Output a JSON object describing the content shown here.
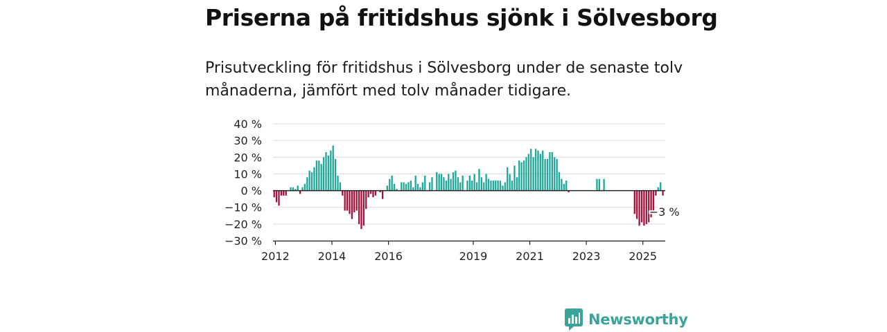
{
  "title": "Priserna på fritidshus sjönk i Sölvesborg",
  "subtitle": "Prisutveckling för fritidshus i Sölvesborg under de senaste tolv månaderna, jämfört med tolv månader tidigare.",
  "brand": {
    "name": "Newsworthy",
    "icon": "newsworthy-logo-icon"
  },
  "colors": {
    "positive": "#1fa79a",
    "negative": "#a6123e",
    "grid": "#d9d9d9",
    "zero_line": "#222222"
  },
  "chart_data": {
    "type": "bar",
    "y_unit": "%",
    "ylim": [
      -30,
      40
    ],
    "y_ticks": [
      40,
      30,
      20,
      10,
      0,
      -10,
      -20,
      -30
    ],
    "y_tick_labels": [
      "40 %",
      "30 %",
      "20 %",
      "10 %",
      "0 %",
      "−10 %",
      "−20 %",
      "−30 %"
    ],
    "x_ticks": [
      2012,
      2014,
      2016,
      2019,
      2021,
      2023,
      2025
    ],
    "grid": true,
    "last_value_label": "−3 %",
    "series": [
      {
        "start": "2011-12",
        "frequency": "monthly",
        "values": [
          -4,
          -7,
          -9,
          -3,
          -3,
          -3,
          null,
          2,
          2,
          1,
          3,
          -2,
          2,
          4,
          8,
          12,
          11,
          14,
          18,
          18,
          16,
          20,
          23,
          21,
          24,
          27,
          19,
          9,
          5,
          -3,
          -12,
          -12,
          -14,
          -17,
          -13,
          -12,
          -20,
          -23,
          -21,
          -11,
          -4,
          -2,
          -4,
          -3,
          null,
          -1,
          -5,
          null,
          3,
          7,
          9,
          4,
          1,
          null,
          5,
          5,
          4,
          5,
          6,
          2,
          9,
          4,
          2,
          5,
          9,
          null,
          5,
          8,
          null,
          11,
          10,
          10,
          8,
          6,
          10,
          7,
          11,
          12,
          8,
          5,
          9,
          null,
          6,
          9,
          6,
          10,
          5,
          13,
          8,
          5,
          10,
          7,
          6,
          6,
          6,
          6,
          6,
          3,
          5,
          14,
          10,
          6,
          15,
          8,
          18,
          17,
          18,
          20,
          22,
          25,
          20,
          25,
          24,
          22,
          24,
          19,
          19,
          23,
          23,
          20,
          19,
          11,
          7,
          4,
          6,
          -1,
          null,
          null,
          null,
          null,
          null,
          null,
          null,
          null,
          null,
          null,
          null,
          7,
          7,
          null,
          7,
          null,
          null,
          null,
          null,
          null,
          null,
          null,
          null,
          null,
          null,
          null,
          null,
          -14,
          -17,
          -21,
          -19,
          -21,
          -20,
          -19,
          -16,
          -12,
          -3,
          2,
          5,
          -3
        ]
      }
    ]
  }
}
